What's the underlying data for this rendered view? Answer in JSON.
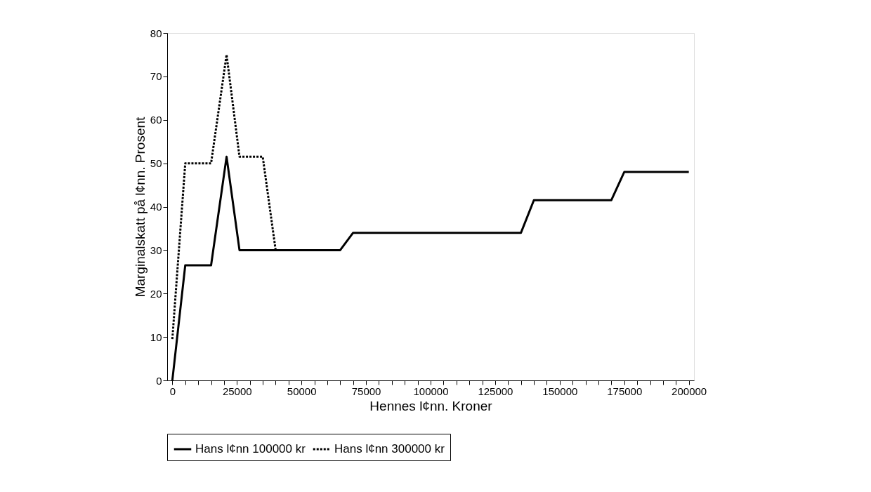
{
  "chart_data": {
    "type": "line",
    "xlabel": "Hennes l¢nn. Kroner",
    "ylabel": "Marginalskatt på l¢nn. Prosent",
    "xlim": [
      -2000,
      202000
    ],
    "ylim": [
      0,
      80
    ],
    "xticks": [
      0,
      {
        "value": 5000,
        "label": null
      },
      {
        "value": 10000,
        "label": null
      },
      {
        "value": 15000,
        "label": null
      },
      {
        "value": 20000,
        "label": null
      },
      25000,
      {
        "value": 30000,
        "label": null
      },
      {
        "value": 35000,
        "label": null
      },
      {
        "value": 40000,
        "label": null
      },
      {
        "value": 45000,
        "label": null
      },
      50000,
      {
        "value": 55000,
        "label": null
      },
      {
        "value": 60000,
        "label": null
      },
      {
        "value": 65000,
        "label": null
      },
      {
        "value": 70000,
        "label": null
      },
      75000,
      {
        "value": 80000,
        "label": null
      },
      {
        "value": 85000,
        "label": null
      },
      {
        "value": 90000,
        "label": null
      },
      {
        "value": 95000,
        "label": null
      },
      100000,
      {
        "value": 105000,
        "label": null
      },
      {
        "value": 110000,
        "label": null
      },
      {
        "value": 115000,
        "label": null
      },
      {
        "value": 120000,
        "label": null
      },
      125000,
      {
        "value": 130000,
        "label": null
      },
      {
        "value": 135000,
        "label": null
      },
      {
        "value": 140000,
        "label": null
      },
      {
        "value": 145000,
        "label": null
      },
      150000,
      {
        "value": 155000,
        "label": null
      },
      {
        "value": 160000,
        "label": null
      },
      {
        "value": 165000,
        "label": null
      },
      {
        "value": 170000,
        "label": null
      },
      175000,
      {
        "value": 180000,
        "label": null
      },
      {
        "value": 185000,
        "label": null
      },
      {
        "value": 190000,
        "label": null
      },
      {
        "value": 195000,
        "label": null
      },
      200000
    ],
    "yticks": [
      0,
      10,
      20,
      30,
      40,
      50,
      60,
      70,
      80
    ],
    "grid": false,
    "legend": "bottom",
    "marker": "none",
    "series": [
      {
        "name": "Hans l¢nn 100000 kr",
        "color": "#000000",
        "line_style": "solid",
        "x": [
          0,
          5000,
          15000,
          21000,
          26000,
          65000,
          70000,
          135000,
          140000,
          170000,
          175000,
          200000
        ],
        "values": [
          0,
          26.5,
          26.5,
          51.5,
          30,
          30,
          34,
          34,
          41.5,
          41.5,
          48,
          48
        ]
      },
      {
        "name": "Hans l¢nn 300000 kr",
        "color": "#000000",
        "line_style": "dotted",
        "x": [
          0,
          5000,
          15000,
          21000,
          26000,
          35000,
          40000
        ],
        "values": [
          9.5,
          50,
          50,
          75,
          51.5,
          51.5,
          30
        ]
      }
    ]
  }
}
